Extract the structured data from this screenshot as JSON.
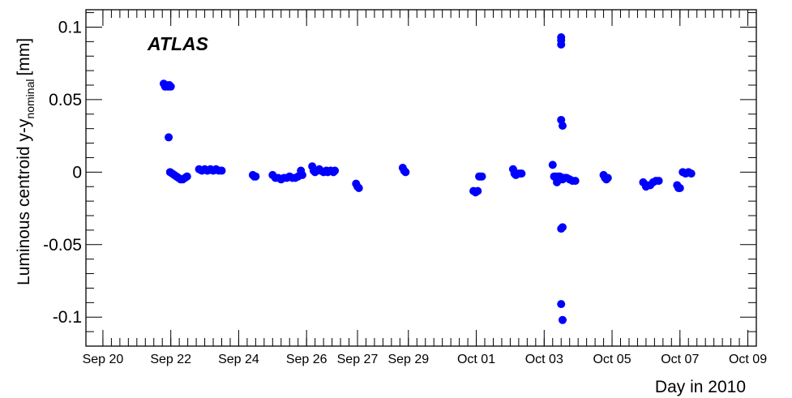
{
  "chart_data": {
    "type": "scatter",
    "annotation": "ATLAS",
    "xlabel": "Day in 2010",
    "ylabel": {
      "main": "Luminous centroid y-y",
      "subscript": "nominal",
      "unit": "[mm]"
    },
    "xlim": [
      "2010-09-19T12:00",
      "2010-10-09T06:00"
    ],
    "ylim": [
      -0.12,
      0.112
    ],
    "x_ticks": [
      {
        "label": "Sep 20",
        "x": "2010-09-20T00:00"
      },
      {
        "label": "Sep 22",
        "x": "2010-09-22T00:00"
      },
      {
        "label": "Sep 24",
        "x": "2010-09-24T00:00"
      },
      {
        "label": "Sep 26",
        "x": "2010-09-26T00:00"
      },
      {
        "label": "Sep 27",
        "x": "2010-09-27T12:00"
      },
      {
        "label": "Sep 29",
        "x": "2010-09-29T00:00"
      },
      {
        "label": "Oct 01",
        "x": "2010-10-01T00:00"
      },
      {
        "label": "Oct 03",
        "x": "2010-10-03T00:00"
      },
      {
        "label": "Oct 05",
        "x": "2010-10-05T00:00"
      },
      {
        "label": "Oct 07",
        "x": "2010-10-07T00:00"
      },
      {
        "label": "Oct 09",
        "x": "2010-10-09T00:00"
      }
    ],
    "y_ticks": [
      {
        "label": "0.1",
        "value": 0.1
      },
      {
        "label": "0.05",
        "value": 0.05
      },
      {
        "label": "0",
        "value": 0
      },
      {
        "label": "-0.05",
        "value": -0.05
      },
      {
        "label": "-0.1",
        "value": -0.1
      }
    ],
    "marker_color": "#0000ff",
    "points": [
      {
        "x": "2010-09-21T19:00",
        "y": 0.061
      },
      {
        "x": "2010-09-21T20:00",
        "y": 0.059
      },
      {
        "x": "2010-09-21T21:00",
        "y": 0.06
      },
      {
        "x": "2010-09-21T22:00",
        "y": 0.059
      },
      {
        "x": "2010-09-21T23:00",
        "y": 0.06
      },
      {
        "x": "2010-09-22T00:00",
        "y": 0.059
      },
      {
        "x": "2010-09-21T22:30",
        "y": 0.024
      },
      {
        "x": "2010-09-21T23:30",
        "y": 0.0
      },
      {
        "x": "2010-09-22T01:00",
        "y": -0.001
      },
      {
        "x": "2010-09-22T02:30",
        "y": -0.002
      },
      {
        "x": "2010-09-22T04:00",
        "y": -0.003
      },
      {
        "x": "2010-09-22T05:30",
        "y": -0.004
      },
      {
        "x": "2010-09-22T07:00",
        "y": -0.005
      },
      {
        "x": "2010-09-22T08:30",
        "y": -0.005
      },
      {
        "x": "2010-09-22T10:00",
        "y": -0.004
      },
      {
        "x": "2010-09-22T11:30",
        "y": -0.003
      },
      {
        "x": "2010-09-22T20:00",
        "y": 0.002
      },
      {
        "x": "2010-09-22T22:00",
        "y": 0.001
      },
      {
        "x": "2010-09-23T00:00",
        "y": 0.002
      },
      {
        "x": "2010-09-23T02:00",
        "y": 0.001
      },
      {
        "x": "2010-09-23T04:00",
        "y": 0.002
      },
      {
        "x": "2010-09-23T06:00",
        "y": 0.001
      },
      {
        "x": "2010-09-23T08:00",
        "y": 0.002
      },
      {
        "x": "2010-09-23T10:00",
        "y": 0.001
      },
      {
        "x": "2010-09-23T12:00",
        "y": 0.001
      },
      {
        "x": "2010-09-24T10:00",
        "y": -0.002
      },
      {
        "x": "2010-09-24T11:00",
        "y": -0.003
      },
      {
        "x": "2010-09-24T12:00",
        "y": -0.003
      },
      {
        "x": "2010-09-25T00:00",
        "y": -0.002
      },
      {
        "x": "2010-09-25T02:00",
        "y": -0.004
      },
      {
        "x": "2010-09-25T04:00",
        "y": -0.004
      },
      {
        "x": "2010-09-25T06:00",
        "y": -0.005
      },
      {
        "x": "2010-09-25T08:00",
        "y": -0.004
      },
      {
        "x": "2010-09-25T10:00",
        "y": -0.004
      },
      {
        "x": "2010-09-25T12:00",
        "y": -0.003
      },
      {
        "x": "2010-09-25T14:00",
        "y": -0.004
      },
      {
        "x": "2010-09-25T16:00",
        "y": -0.004
      },
      {
        "x": "2010-09-25T18:00",
        "y": -0.003
      },
      {
        "x": "2010-09-25T20:00",
        "y": 0.001
      },
      {
        "x": "2010-09-25T21:00",
        "y": -0.002
      },
      {
        "x": "2010-09-26T04:00",
        "y": 0.004
      },
      {
        "x": "2010-09-26T05:00",
        "y": 0.001
      },
      {
        "x": "2010-09-26T06:00",
        "y": 0.0
      },
      {
        "x": "2010-09-26T09:00",
        "y": 0.002
      },
      {
        "x": "2010-09-26T10:00",
        "y": 0.001
      },
      {
        "x": "2010-09-26T12:00",
        "y": 0.0
      },
      {
        "x": "2010-09-26T14:00",
        "y": 0.001
      },
      {
        "x": "2010-09-26T15:00",
        "y": 0.0
      },
      {
        "x": "2010-09-26T17:00",
        "y": 0.001
      },
      {
        "x": "2010-09-26T19:00",
        "y": 0.0
      },
      {
        "x": "2010-09-26T20:00",
        "y": 0.001
      },
      {
        "x": "2010-09-27T11:00",
        "y": -0.008
      },
      {
        "x": "2010-09-27T12:00",
        "y": -0.01
      },
      {
        "x": "2010-09-27T13:00",
        "y": -0.011
      },
      {
        "x": "2010-09-28T20:00",
        "y": 0.003
      },
      {
        "x": "2010-09-28T21:00",
        "y": 0.001
      },
      {
        "x": "2010-09-28T22:00",
        "y": 0.0
      },
      {
        "x": "2010-09-30T22:00",
        "y": -0.013
      },
      {
        "x": "2010-09-30T23:30",
        "y": -0.014
      },
      {
        "x": "2010-10-01T01:00",
        "y": -0.013
      },
      {
        "x": "2010-10-01T02:00",
        "y": -0.003
      },
      {
        "x": "2010-10-01T03:00",
        "y": -0.003
      },
      {
        "x": "2010-10-01T04:00",
        "y": -0.003
      },
      {
        "x": "2010-10-02T02:00",
        "y": 0.002
      },
      {
        "x": "2010-10-02T03:00",
        "y": -0.001
      },
      {
        "x": "2010-10-02T04:00",
        "y": -0.002
      },
      {
        "x": "2010-10-02T05:30",
        "y": -0.001
      },
      {
        "x": "2010-10-02T07:00",
        "y": -0.001
      },
      {
        "x": "2010-10-02T08:00",
        "y": -0.001
      },
      {
        "x": "2010-10-03T06:00",
        "y": 0.005
      },
      {
        "x": "2010-10-03T07:00",
        "y": -0.003
      },
      {
        "x": "2010-10-03T08:00",
        "y": -0.003
      },
      {
        "x": "2010-10-03T09:00",
        "y": -0.007
      },
      {
        "x": "2010-10-03T10:00",
        "y": -0.003
      },
      {
        "x": "2010-10-03T11:00",
        "y": -0.003
      },
      {
        "x": "2010-10-03T12:00",
        "y": -0.004
      },
      {
        "x": "2010-10-03T13:00",
        "y": -0.005
      },
      {
        "x": "2010-10-03T14:00",
        "y": -0.004
      },
      {
        "x": "2010-10-03T15:00",
        "y": -0.004
      },
      {
        "x": "2010-10-03T16:00",
        "y": -0.004
      },
      {
        "x": "2010-10-03T18:00",
        "y": -0.005
      },
      {
        "x": "2010-10-03T20:00",
        "y": -0.006
      },
      {
        "x": "2010-10-03T22:00",
        "y": -0.006
      },
      {
        "x": "2010-10-03T12:00",
        "y": 0.093
      },
      {
        "x": "2010-10-03T12:00",
        "y": 0.091
      },
      {
        "x": "2010-10-03T12:00",
        "y": 0.088
      },
      {
        "x": "2010-10-03T12:00",
        "y": 0.036
      },
      {
        "x": "2010-10-03T13:00",
        "y": 0.032
      },
      {
        "x": "2010-10-03T12:00",
        "y": -0.039
      },
      {
        "x": "2010-10-03T13:00",
        "y": -0.038
      },
      {
        "x": "2010-10-03T12:00",
        "y": -0.091
      },
      {
        "x": "2010-10-03T13:00",
        "y": -0.102
      },
      {
        "x": "2010-10-04T18:00",
        "y": -0.002
      },
      {
        "x": "2010-10-04T19:00",
        "y": -0.004
      },
      {
        "x": "2010-10-04T20:00",
        "y": -0.005
      },
      {
        "x": "2010-10-04T21:00",
        "y": -0.004
      },
      {
        "x": "2010-10-05T22:00",
        "y": -0.007
      },
      {
        "x": "2010-10-06T00:00",
        "y": -0.01
      },
      {
        "x": "2010-10-06T01:00",
        "y": -0.009
      },
      {
        "x": "2010-10-06T03:00",
        "y": -0.009
      },
      {
        "x": "2010-10-06T05:00",
        "y": -0.007
      },
      {
        "x": "2010-10-06T07:00",
        "y": -0.006
      },
      {
        "x": "2010-10-06T09:00",
        "y": -0.006
      },
      {
        "x": "2010-10-06T22:00",
        "y": -0.009
      },
      {
        "x": "2010-10-06T23:00",
        "y": -0.011
      },
      {
        "x": "2010-10-07T00:00",
        "y": -0.011
      },
      {
        "x": "2010-10-07T02:00",
        "y": 0.0
      },
      {
        "x": "2010-10-07T04:00",
        "y": -0.001
      },
      {
        "x": "2010-10-07T06:00",
        "y": 0.0
      },
      {
        "x": "2010-10-07T08:00",
        "y": -0.001
      }
    ]
  }
}
